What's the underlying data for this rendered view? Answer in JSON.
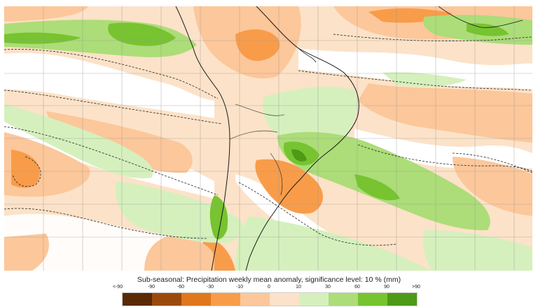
{
  "caption": "Sub-seasonal: Precipitation weekly mean anomaly, significance level: 10 % (mm)",
  "legend": {
    "labels": [
      "<-90",
      "-90",
      "-60",
      "-30",
      "-10",
      "0",
      "10",
      "30",
      "60",
      "90",
      ">90"
    ],
    "colors": [
      "#5a2a06",
      "#9c4a0c",
      "#e0761e",
      "#f89c4a",
      "#fcc79a",
      "#fce2c8",
      "#d5f0bd",
      "#acdd78",
      "#77c330",
      "#4d9a17",
      "#2f6f0d"
    ]
  },
  "colors": {
    "map_background": "#fbe7cf",
    "coastline": "#1a1a1a",
    "grid": "#9a9a9a",
    "significance_contour": "#222222"
  }
}
